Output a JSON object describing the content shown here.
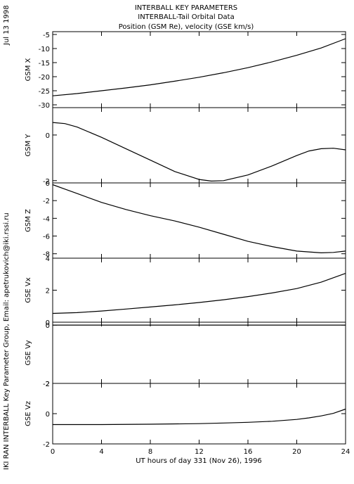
{
  "header": {
    "line1": "INTERBALL KEY PARAMETERS",
    "line2": "INTERBALL-Tail Orbital Data",
    "line3": "Position (GSM Re), velocity (GSE km/s)"
  },
  "side": {
    "date": "Jul 13 1998",
    "credit": "IKI RAN INTERBALL Key Parameter Group, Email: apetrukovich@iki.rssi.ru"
  },
  "chart_data": {
    "type": "line",
    "xlabel": "UT hours of day 331 (Nov 26), 1996",
    "xlim": [
      0,
      24
    ],
    "xticks": [
      0,
      4,
      8,
      12,
      16,
      20,
      24
    ],
    "grid": false,
    "panels": [
      {
        "ylabel": "GSM X",
        "ylim": [
          -31,
          -4
        ],
        "yticks": [
          -5,
          -10,
          -15,
          -20,
          -25,
          -30
        ],
        "x": [
          0,
          2,
          4,
          6,
          8,
          10,
          12,
          14,
          16,
          18,
          20,
          22,
          24
        ],
        "y": [
          -26.8,
          -26.0,
          -25.0,
          -24.0,
          -22.9,
          -21.6,
          -20.2,
          -18.6,
          -16.8,
          -14.7,
          -12.4,
          -9.8,
          -6.5
        ]
      },
      {
        "ylabel": "GSM Y",
        "ylim": [
          -2.1,
          1.2
        ],
        "yticks": [
          0,
          -2
        ],
        "x": [
          0,
          1,
          2,
          4,
          6,
          8,
          10,
          12,
          13,
          14,
          16,
          18,
          20,
          21,
          22,
          23,
          24
        ],
        "y": [
          0.55,
          0.5,
          0.35,
          -0.1,
          -0.6,
          -1.1,
          -1.6,
          -1.95,
          -2.02,
          -2.0,
          -1.75,
          -1.35,
          -0.9,
          -0.7,
          -0.6,
          -0.58,
          -0.65
        ]
      },
      {
        "ylabel": "GSM Z",
        "ylim": [
          -8.5,
          0
        ],
        "yticks": [
          0,
          -2,
          -4,
          -6,
          -8
        ],
        "x": [
          0,
          1,
          2,
          4,
          6,
          8,
          10,
          12,
          14,
          16,
          18,
          20,
          22,
          23,
          24
        ],
        "y": [
          -0.2,
          -0.7,
          -1.2,
          -2.2,
          -3.0,
          -3.7,
          -4.3,
          -5.0,
          -5.8,
          -6.6,
          -7.2,
          -7.7,
          -7.9,
          -7.85,
          -7.7
        ]
      },
      {
        "ylabel": "GSE Vx",
        "ylim": [
          0,
          4
        ],
        "yticks": [
          0,
          2,
          4
        ],
        "x": [
          0,
          2,
          4,
          6,
          8,
          10,
          12,
          14,
          16,
          18,
          20,
          22,
          24
        ],
        "y": [
          0.55,
          0.6,
          0.7,
          0.82,
          0.95,
          1.08,
          1.23,
          1.4,
          1.6,
          1.83,
          2.1,
          2.5,
          3.05
        ]
      },
      {
        "ylabel": "GSE Vy",
        "ylim": [
          -2,
          0.1
        ],
        "yticks": [
          0,
          -2
        ],
        "x": [
          0,
          4,
          8,
          12,
          16,
          20,
          24
        ],
        "y": [
          0.0,
          0.0,
          0.0,
          0.0,
          0.0,
          0.0,
          0.0
        ]
      },
      {
        "ylabel": "GSE Vz",
        "ylim": [
          -2,
          2
        ],
        "yticks": [
          2,
          0,
          -2
        ],
        "x": [
          0,
          4,
          8,
          12,
          14,
          16,
          18,
          20,
          21,
          22,
          23,
          24
        ],
        "y": [
          -0.72,
          -0.72,
          -0.7,
          -0.66,
          -0.62,
          -0.57,
          -0.5,
          -0.38,
          -0.28,
          -0.15,
          0.02,
          0.3
        ]
      }
    ]
  }
}
